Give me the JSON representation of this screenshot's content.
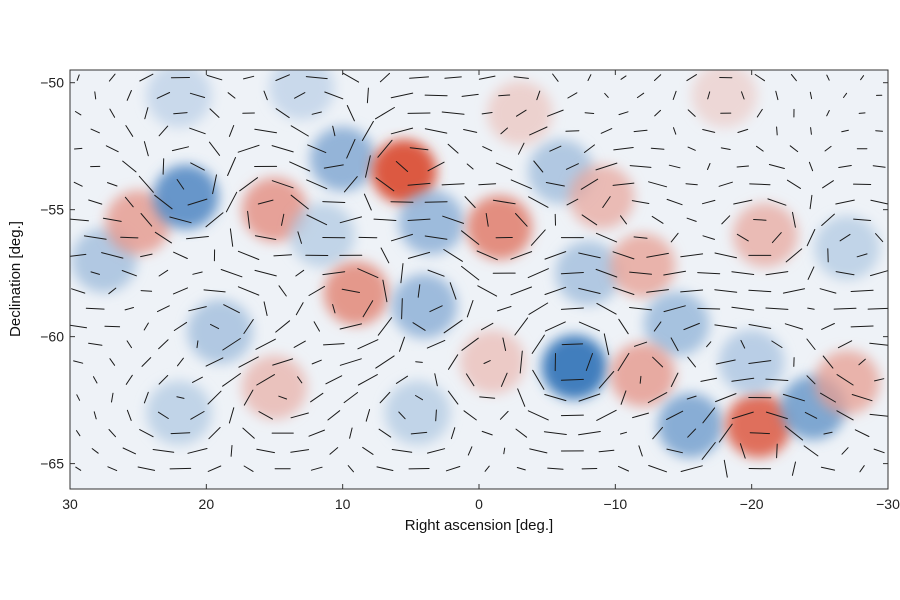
{
  "chart_data": {
    "type": "heatmap",
    "title": "",
    "xlabel": "Right ascension [deg.]",
    "ylabel": "Declination [deg.]",
    "xlim": [
      30,
      -30
    ],
    "ylim": [
      -66,
      -49.5
    ],
    "x_ticks": [
      30,
      20,
      10,
      0,
      -10,
      -20,
      -30
    ],
    "x_tick_labels": [
      "30",
      "20",
      "10",
      "0",
      "−10",
      "−20",
      "−30"
    ],
    "y_ticks": [
      -50,
      -55,
      -60,
      -65
    ],
    "y_tick_labels": [
      "−50",
      "−55",
      "−60",
      "−65"
    ],
    "grid": false,
    "legend": "none",
    "colormap": {
      "negative": "#2a6eb5",
      "zero": "#f4f6f9",
      "positive": "#d9442a"
    },
    "blobs": [
      {
        "ra": 27.5,
        "dec": -57.0,
        "value": -0.45
      },
      {
        "ra": 25.0,
        "dec": -55.5,
        "value": 0.55
      },
      {
        "ra": 21.5,
        "dec": -54.5,
        "value": -0.8
      },
      {
        "ra": 15.0,
        "dec": -55.0,
        "value": 0.6
      },
      {
        "ra": 11.5,
        "dec": -56.0,
        "value": -0.35
      },
      {
        "ra": 10.0,
        "dec": -53.0,
        "value": -0.6
      },
      {
        "ra": 5.5,
        "dec": -53.5,
        "value": 0.95
      },
      {
        "ra": 3.5,
        "dec": -55.5,
        "value": -0.55
      },
      {
        "ra": -1.5,
        "dec": -55.7,
        "value": 0.7
      },
      {
        "ra": 9.0,
        "dec": -58.3,
        "value": 0.65
      },
      {
        "ra": 4.0,
        "dec": -58.8,
        "value": -0.55
      },
      {
        "ra": 19.0,
        "dec": -59.8,
        "value": -0.45
      },
      {
        "ra": 15.0,
        "dec": -62.0,
        "value": 0.4
      },
      {
        "ra": 22.0,
        "dec": -63.0,
        "value": -0.35
      },
      {
        "ra": -6.0,
        "dec": -53.5,
        "value": -0.45
      },
      {
        "ra": -9.0,
        "dec": -54.5,
        "value": 0.45
      },
      {
        "ra": -8.0,
        "dec": -57.5,
        "value": -0.45
      },
      {
        "ra": -12.0,
        "dec": -57.2,
        "value": 0.5
      },
      {
        "ra": -14.5,
        "dec": -59.5,
        "value": -0.5
      },
      {
        "ra": -7.0,
        "dec": -61.2,
        "value": -0.95
      },
      {
        "ra": -12.0,
        "dec": -61.5,
        "value": 0.55
      },
      {
        "ra": -15.5,
        "dec": -63.5,
        "value": -0.65
      },
      {
        "ra": -20.5,
        "dec": -63.5,
        "value": 0.85
      },
      {
        "ra": -20.0,
        "dec": -61.0,
        "value": -0.4
      },
      {
        "ra": -24.5,
        "dec": -62.8,
        "value": -0.7
      },
      {
        "ra": -27.0,
        "dec": -61.8,
        "value": 0.5
      },
      {
        "ra": -21.0,
        "dec": -56.0,
        "value": 0.45
      },
      {
        "ra": -27.0,
        "dec": -56.5,
        "value": -0.35
      },
      {
        "ra": -1.0,
        "dec": -61.0,
        "value": 0.35
      },
      {
        "ra": 4.5,
        "dec": -63.0,
        "value": -0.35
      },
      {
        "ra": -3.0,
        "dec": -51.2,
        "value": 0.3
      },
      {
        "ra": 13.0,
        "dec": -50.2,
        "value": -0.3
      },
      {
        "ra": 22.0,
        "dec": -50.5,
        "value": -0.3
      },
      {
        "ra": -18.0,
        "dec": -50.5,
        "value": 0.25
      }
    ],
    "vector_field": {
      "ra_step": 2.5,
      "dec_step": 0.7,
      "description": "polarization headless segments, length proportional to local gradient"
    }
  }
}
